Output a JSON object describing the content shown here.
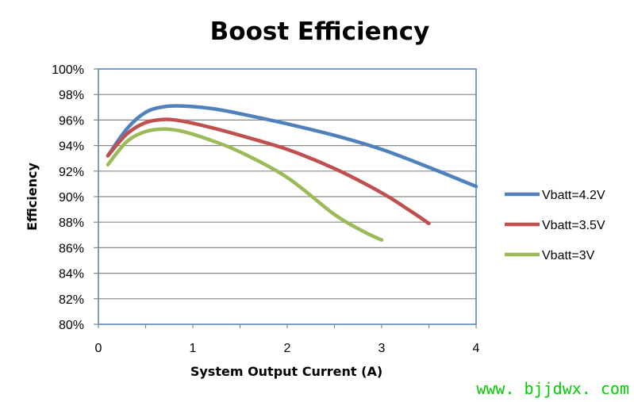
{
  "chart_data": {
    "type": "line",
    "title": "Boost Efficiency",
    "xlabel": "System Output Current (A)",
    "ylabel": "Efficiency",
    "xlim": [
      0,
      4
    ],
    "ylim": [
      80,
      100
    ],
    "x_ticks": [
      0,
      1,
      2,
      3,
      4
    ],
    "x_tick_labels": [
      "0",
      "1",
      "2",
      "3",
      "4"
    ],
    "y_ticks": [
      80,
      82,
      84,
      86,
      88,
      90,
      92,
      94,
      96,
      98,
      100
    ],
    "y_tick_labels": [
      "80%",
      "82%",
      "84%",
      "86%",
      "88%",
      "90%",
      "92%",
      "94%",
      "96%",
      "98%",
      "100%"
    ],
    "grid": "horizontal",
    "legend_position": "right",
    "series": [
      {
        "name": "Vbatt=4.2V",
        "color": "#4f81bd",
        "x": [
          0.1,
          0.3,
          0.5,
          0.7,
          0.9,
          1.2,
          1.5,
          2.0,
          2.5,
          3.0,
          3.5,
          4.0
        ],
        "y": [
          93.2,
          95.3,
          96.6,
          97.05,
          97.1,
          96.9,
          96.5,
          95.7,
          94.8,
          93.7,
          92.3,
          90.8
        ]
      },
      {
        "name": "Vbatt=3.5V",
        "color": "#c0504d",
        "x": [
          0.1,
          0.3,
          0.5,
          0.7,
          0.9,
          1.2,
          1.5,
          2.0,
          2.5,
          3.0,
          3.3,
          3.5
        ],
        "y": [
          93.2,
          94.9,
          95.8,
          96.05,
          95.9,
          95.4,
          94.8,
          93.7,
          92.2,
          90.3,
          88.9,
          87.9
        ]
      },
      {
        "name": "Vbatt=3V",
        "color": "#9bbb59",
        "x": [
          0.1,
          0.3,
          0.5,
          0.7,
          0.9,
          1.2,
          1.5,
          2.0,
          2.5,
          2.8,
          3.0
        ],
        "y": [
          92.5,
          94.3,
          95.1,
          95.3,
          95.1,
          94.4,
          93.5,
          91.5,
          88.6,
          87.3,
          86.6
        ]
      }
    ]
  },
  "watermark": "www. bjjdwx. com"
}
